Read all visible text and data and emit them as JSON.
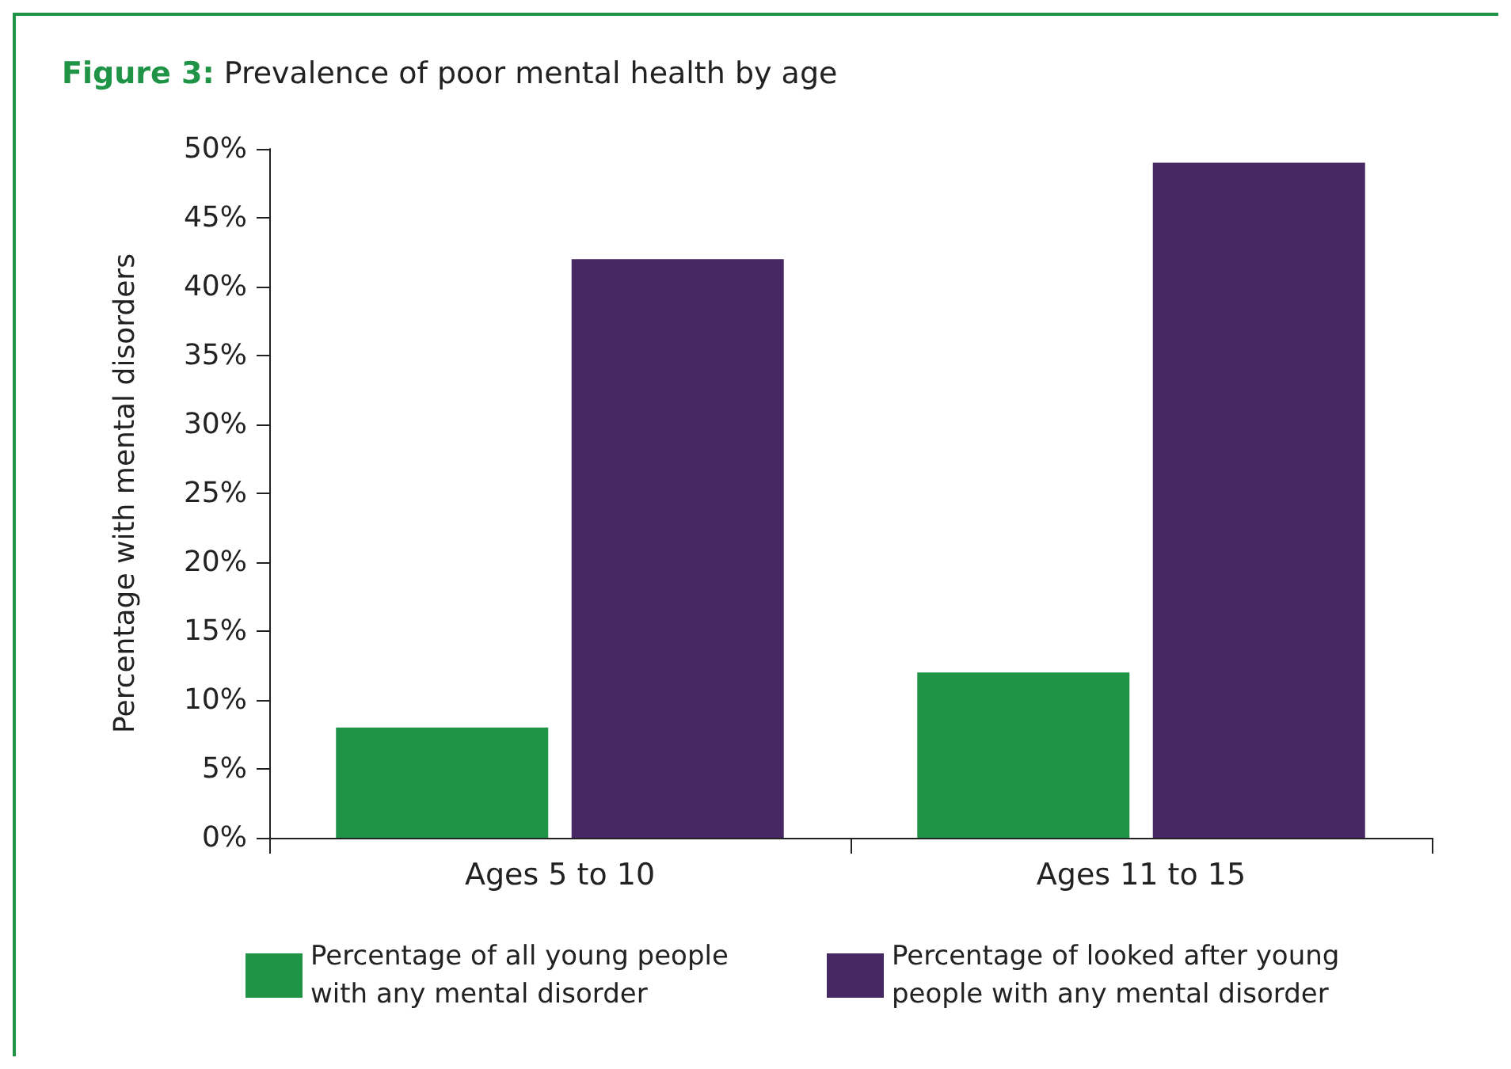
{
  "chart_data": {
    "type": "bar",
    "title": "Figure 3: Prevalence of poor mental health by age",
    "ylabel": "Percentage with mental disorders",
    "categories": [
      "Ages 5 to 10",
      "Ages 11 to 15"
    ],
    "series": [
      {
        "name": "Percentage of all young people with any mental disorder",
        "color": "#1f9447",
        "values": [
          8,
          12
        ]
      },
      {
        "name": "Percentage of looked after young people with any mental disorder",
        "color": "#472864",
        "values": [
          42,
          49
        ]
      }
    ],
    "ylim": [
      0,
      50
    ],
    "yticks": [
      {
        "value": 0,
        "label": "0%"
      },
      {
        "value": 5,
        "label": "5%"
      },
      {
        "value": 10,
        "label": "10%"
      },
      {
        "value": 15,
        "label": "15%"
      },
      {
        "value": 20,
        "label": "20%"
      },
      {
        "value": 25,
        "label": "25%"
      },
      {
        "value": 30,
        "label": "30%"
      },
      {
        "value": 35,
        "label": "35%"
      },
      {
        "value": 40,
        "label": "40%"
      },
      {
        "value": 45,
        "label": "45%"
      },
      {
        "value": 50,
        "label": "50%"
      }
    ],
    "grid": false,
    "legend": "bottom"
  }
}
